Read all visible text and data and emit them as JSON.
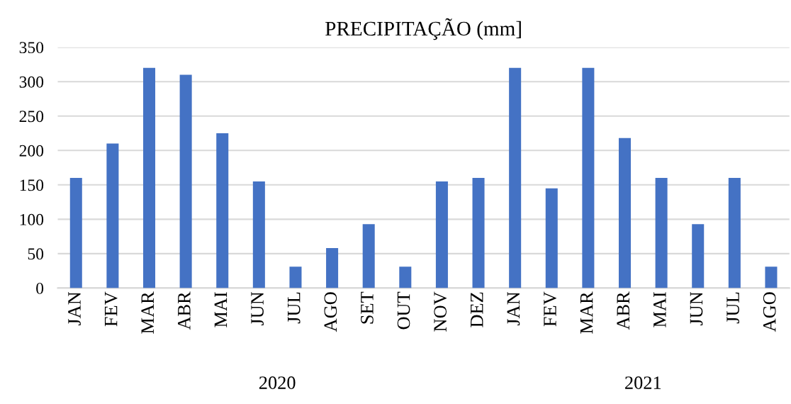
{
  "chart_data": {
    "type": "bar",
    "title": "PRECIPITAÇÃO (mm]",
    "categories": [
      "JAN",
      "FEV",
      "MAR",
      "ABR",
      "MAI",
      "JUN",
      "JUL",
      "AGO",
      "SET",
      "OUT",
      "NOV",
      "DEZ",
      "JAN",
      "FEV",
      "MAR",
      "ABR",
      "MAI",
      "JUN",
      "JUL",
      "AGO"
    ],
    "values": [
      160,
      210,
      320,
      310,
      225,
      155,
      31,
      58,
      93,
      31,
      155,
      160,
      320,
      145,
      320,
      218,
      160,
      93,
      160,
      31
    ],
    "color": "#4472c4",
    "ylim": [
      0,
      350
    ],
    "yticks": [
      0,
      50,
      100,
      150,
      200,
      250,
      300,
      350
    ],
    "grid": "y",
    "annotations": [
      "2020",
      "2021"
    ]
  }
}
